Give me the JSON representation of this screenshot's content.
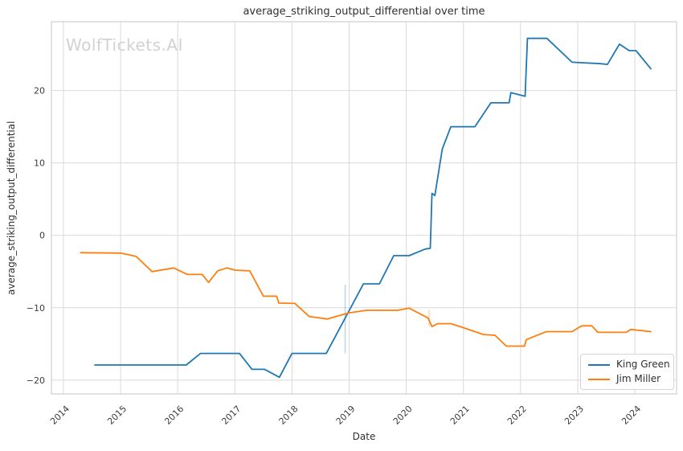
{
  "watermark": "WolfTickets.AI",
  "title": "average_striking_output_differential over time",
  "x_axis_label": "Date",
  "y_axis_label": "average_striking_output_differential",
  "legend": {
    "position": "lower right",
    "items": [
      {
        "label": "King Green",
        "color": "#1f77b4"
      },
      {
        "label": "Jim Miller",
        "color": "#ff7f0e"
      }
    ]
  },
  "colors": {
    "grid": "#d9d9d9",
    "spine": "#cfcfcf",
    "tick_text": "#3c3c3c",
    "title_text": "#2f2f2f",
    "watermark_text": "#d2d2d2",
    "background": "#ffffff",
    "series_blue": "#1f77b4",
    "series_orange": "#ff7f0e"
  },
  "chart_data": {
    "type": "line",
    "title": "average_striking_output_differential over time",
    "xlabel": "Date",
    "ylabel": "average_striking_output_differential",
    "grid": true,
    "legend_position": "lower right",
    "xlim": [
      2013.79,
      2024.73
    ],
    "ylim": [
      -21.9,
      29.5
    ],
    "x_ticks": [
      2014,
      2015,
      2016,
      2017,
      2018,
      2019,
      2020,
      2021,
      2022,
      2023,
      2024
    ],
    "x_tick_labels": [
      "2014",
      "2015",
      "2016",
      "2017",
      "2018",
      "2019",
      "2020",
      "2021",
      "2022",
      "2023",
      "2024"
    ],
    "y_ticks": [
      -20,
      -10,
      0,
      10,
      20
    ],
    "y_tick_labels": [
      "−20",
      "−10",
      "0",
      "10",
      "20"
    ],
    "series": [
      {
        "name": "King Green",
        "color": "#1f77b4",
        "points": [
          [
            2014.55,
            -17.9
          ],
          [
            2016.15,
            -17.9
          ],
          [
            2016.4,
            -16.3
          ],
          [
            2017.08,
            -16.3
          ],
          [
            2017.3,
            -18.5
          ],
          [
            2017.52,
            -18.5
          ],
          [
            2017.78,
            -19.6
          ],
          [
            2018.0,
            -16.3
          ],
          [
            2018.6,
            -16.3
          ],
          [
            2019.25,
            -6.7
          ],
          [
            2019.53,
            -6.7
          ],
          [
            2019.78,
            -2.8
          ],
          [
            2020.05,
            -2.8
          ],
          [
            2020.33,
            -1.9
          ],
          [
            2020.42,
            -1.8
          ],
          [
            2020.45,
            5.8
          ],
          [
            2020.5,
            5.5
          ],
          [
            2020.63,
            11.9
          ],
          [
            2020.78,
            15.0
          ],
          [
            2021.2,
            15.0
          ],
          [
            2021.48,
            18.3
          ],
          [
            2021.8,
            18.3
          ],
          [
            2021.83,
            19.7
          ],
          [
            2022.08,
            19.2
          ],
          [
            2022.12,
            27.2
          ],
          [
            2022.46,
            27.2
          ],
          [
            2022.9,
            23.9
          ],
          [
            2023.4,
            23.7
          ],
          [
            2023.52,
            23.6
          ],
          [
            2023.73,
            26.4
          ],
          [
            2023.9,
            25.5
          ],
          [
            2024.02,
            25.5
          ],
          [
            2024.28,
            23.0
          ]
        ]
      },
      {
        "name": "Jim Miller",
        "color": "#ff7f0e",
        "points": [
          [
            2014.3,
            -2.4
          ],
          [
            2015.0,
            -2.45
          ],
          [
            2015.27,
            -2.9
          ],
          [
            2015.55,
            -5.0
          ],
          [
            2015.93,
            -4.5
          ],
          [
            2016.17,
            -5.4
          ],
          [
            2016.43,
            -5.4
          ],
          [
            2016.54,
            -6.5
          ],
          [
            2016.7,
            -4.9
          ],
          [
            2016.86,
            -4.5
          ],
          [
            2017.0,
            -4.8
          ],
          [
            2017.26,
            -4.9
          ],
          [
            2017.5,
            -8.4
          ],
          [
            2017.73,
            -8.4
          ],
          [
            2017.77,
            -9.35
          ],
          [
            2018.05,
            -9.4
          ],
          [
            2018.3,
            -11.2
          ],
          [
            2018.62,
            -11.55
          ],
          [
            2019.0,
            -10.7
          ],
          [
            2019.3,
            -10.35
          ],
          [
            2019.85,
            -10.35
          ],
          [
            2020.05,
            -10.05
          ],
          [
            2020.38,
            -11.4
          ],
          [
            2020.45,
            -12.6
          ],
          [
            2020.55,
            -12.2
          ],
          [
            2020.78,
            -12.2
          ],
          [
            2021.0,
            -12.75
          ],
          [
            2021.35,
            -13.7
          ],
          [
            2021.55,
            -13.8
          ],
          [
            2021.75,
            -15.3
          ],
          [
            2022.07,
            -15.3
          ],
          [
            2022.1,
            -14.4
          ],
          [
            2022.45,
            -13.3
          ],
          [
            2022.9,
            -13.3
          ],
          [
            2023.07,
            -12.5
          ],
          [
            2023.25,
            -12.5
          ],
          [
            2023.35,
            -13.4
          ],
          [
            2023.85,
            -13.4
          ],
          [
            2023.93,
            -13.0
          ],
          [
            2024.28,
            -13.3
          ]
        ]
      }
    ],
    "annotations": [
      {
        "type": "vline",
        "x": 2018.93,
        "y1": -16.3,
        "y2": -6.8,
        "color": "rgba(31,119,180,0.30)"
      },
      {
        "type": "vline",
        "x": 2020.4,
        "y1": -12.6,
        "y2": -10.3,
        "color": "rgba(255,127,14,0.30)"
      }
    ]
  }
}
